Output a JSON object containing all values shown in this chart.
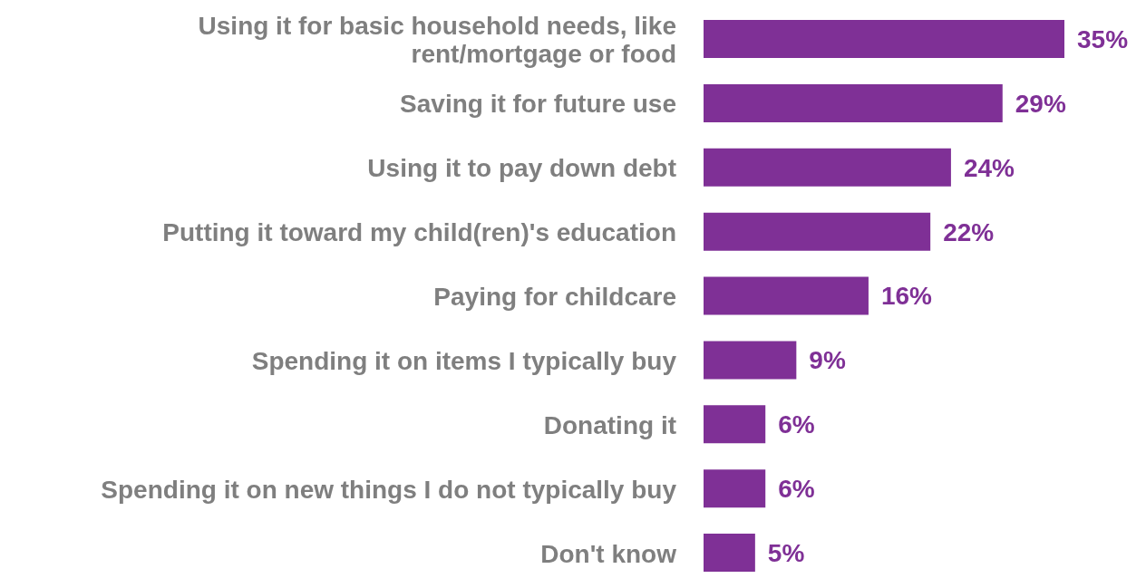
{
  "chart_data": {
    "type": "bar",
    "orientation": "horizontal",
    "categories": [
      "Using it for basic household needs, like rent/mortgage or food",
      "Saving it for future use",
      "Using it to pay down debt",
      "Putting it toward my child(ren)'s education",
      "Paying for childcare",
      "Spending it on items I typically buy",
      "Donating it",
      "Spending it on new things I do not typically buy",
      "Don't know"
    ],
    "values": [
      35,
      29,
      24,
      22,
      16,
      9,
      6,
      6,
      5
    ],
    "value_labels": [
      "35%",
      "29%",
      "24%",
      "22%",
      "16%",
      "9%",
      "6%",
      "6%",
      "5%"
    ],
    "color": "#7f3096",
    "grid": false
  }
}
